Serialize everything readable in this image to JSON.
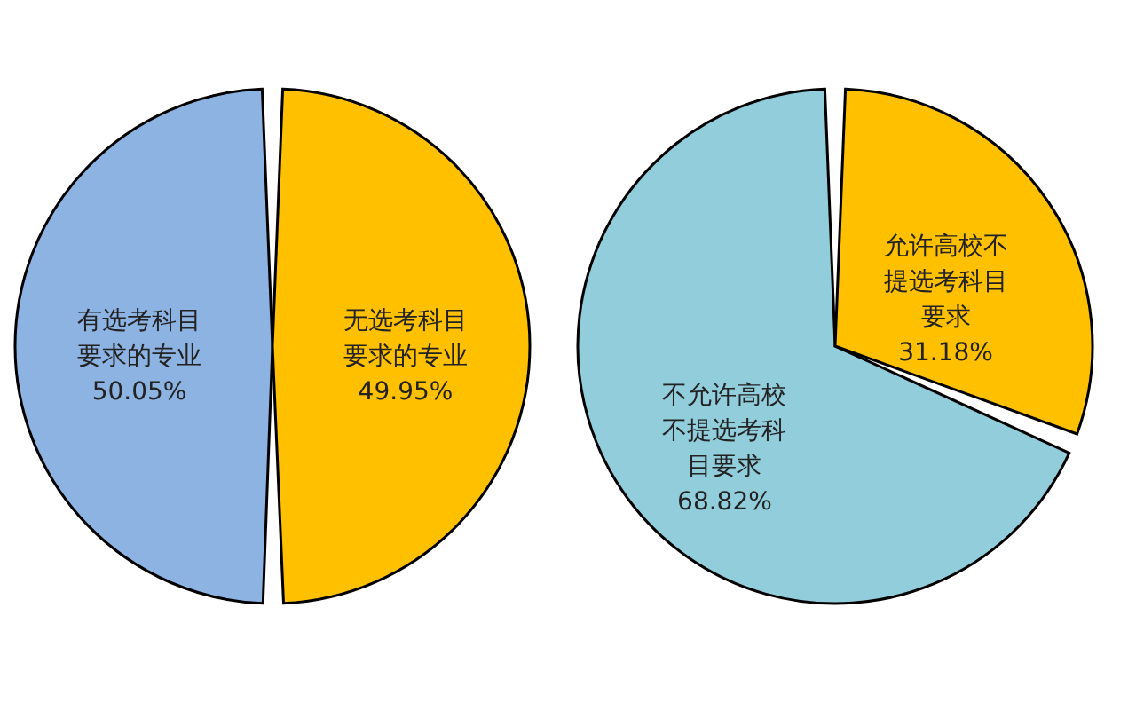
{
  "chart_data": [
    {
      "type": "pie",
      "categories": [
        "有选考科目要求的专业",
        "无选考科目要求的专业"
      ],
      "values": [
        50.05,
        49.95
      ],
      "value_labels": [
        "50.05%",
        "49.95%"
      ],
      "colors": [
        "#8db3e2",
        "#ffc000"
      ]
    },
    {
      "type": "pie",
      "categories": [
        "不允许高校不提选考科目要求",
        "允许高校不提选考科目要求"
      ],
      "values": [
        68.82,
        31.18
      ],
      "value_labels": [
        "68.82%",
        "31.18%"
      ],
      "colors": [
        "#92cddc",
        "#ffc000"
      ]
    }
  ]
}
